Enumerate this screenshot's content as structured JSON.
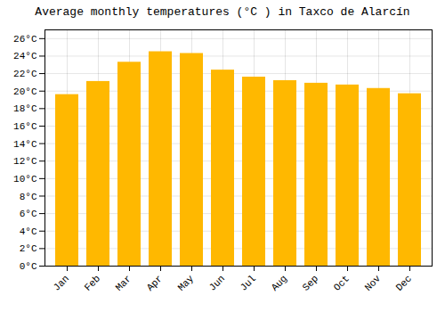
{
  "chart_data": {
    "type": "bar",
    "title": "Average monthly temperatures (°C ) in Taxco de Alarcín",
    "categories": [
      "Jan",
      "Feb",
      "Mar",
      "Apr",
      "May",
      "Jun",
      "Jul",
      "Aug",
      "Sep",
      "Oct",
      "Nov",
      "Dec"
    ],
    "values": [
      19.6,
      21.1,
      23.3,
      24.5,
      24.3,
      22.4,
      21.6,
      21.2,
      20.9,
      20.7,
      20.3,
      19.7
    ],
    "color": "#FFB800",
    "ylim": [
      0,
      27
    ],
    "yticks": [
      {
        "value": 0,
        "label": "0°C"
      },
      {
        "value": 2,
        "label": "2°C"
      },
      {
        "value": 4,
        "label": "4°C"
      },
      {
        "value": 6,
        "label": "6°C"
      },
      {
        "value": 8,
        "label": "8°C"
      },
      {
        "value": 10,
        "label": "10°C"
      },
      {
        "value": 12,
        "label": "12°C"
      },
      {
        "value": 14,
        "label": "14°C"
      },
      {
        "value": 16,
        "label": "16°C"
      },
      {
        "value": 18,
        "label": "18°C"
      },
      {
        "value": 20,
        "label": "20°C"
      },
      {
        "value": 22,
        "label": "22°C"
      },
      {
        "value": 24,
        "label": "24°C"
      },
      {
        "value": 26,
        "label": "26°C"
      }
    ],
    "grid": true
  }
}
